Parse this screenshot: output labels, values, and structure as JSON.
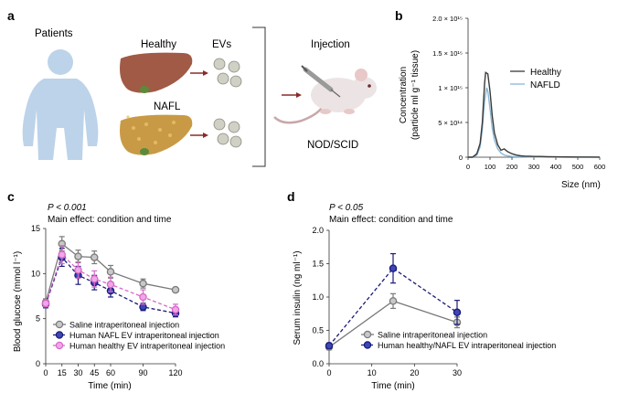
{
  "panel_a": {
    "label": "a",
    "patients": "Patients",
    "healthy": "Healthy",
    "nafl": "NAFL",
    "evs": "EVs",
    "injection": "Injection",
    "mouse": "NOD/SCID",
    "colors": {
      "skin": "#bcd3ea",
      "liver_healthy": "#a05a45",
      "liver_nafl": "#c99a45",
      "arrow": "#8a2a2a",
      "mouse": "#e8dede"
    }
  },
  "panel_b": {
    "label": "b",
    "ylabel_line1": "Concentration",
    "ylabel_line2": "(particle ml g⁻¹ tissue)",
    "xlabel": "Size (nm)",
    "legend_healthy": "Healthy",
    "legend_nafld": "NAFLD"
  },
  "panel_c": {
    "label": "c",
    "stat": "P < 0.001",
    "effect": "Main effect: condition and time",
    "ylabel": "Blood glucose (mmol l⁻¹)",
    "xlabel": "Time (min)",
    "legend": [
      "Saline intraperitoneal injection",
      "Human NAFL EV intraperitoneal injection",
      "Human healthy EV intraperitoneal injection"
    ]
  },
  "panel_d": {
    "label": "d",
    "stat": "P < 0.05",
    "effect": "Main effect: condition and time",
    "ylabel": "Serum insulin (ng ml⁻¹)",
    "xlabel": "Time (min)",
    "legend": [
      "Saline intraperitoneal injection",
      "Human healthy/NAFL EV intraperitoneal injection"
    ]
  },
  "chart_data": [
    {
      "type": "line",
      "id": "b",
      "xlabel": "Size (nm)",
      "ylabel": "Concentration (particle ml g⁻¹ tissue)",
      "xlim": [
        0,
        600
      ],
      "ylim": [
        0,
        2000000000000000.0
      ],
      "xticks": [
        0,
        100,
        200,
        300,
        400,
        500,
        600
      ],
      "yticks": [
        0,
        500000000000000.0,
        1000000000000000.0,
        1500000000000000.0,
        2000000000000000.0
      ],
      "ytick_labels": [
        "0",
        "5 × 10¹⁴",
        "1 × 10¹⁵",
        "1.5 × 10¹⁵",
        "2.0 × 10¹⁵"
      ],
      "legend_position": "right",
      "series": [
        {
          "name": "Healthy",
          "color": "#3a3a3a",
          "x": [
            0,
            20,
            40,
            55,
            65,
            75,
            80,
            90,
            100,
            110,
            120,
            135,
            150,
            165,
            180,
            200,
            220,
            240,
            260,
            280,
            300,
            330,
            360,
            400,
            450,
            500,
            550,
            600
          ],
          "values": [
            0,
            0,
            50000000000000.0,
            200000000000000.0,
            500000000000000.0,
            1050000000000000.0,
            1220000000000000.0,
            1200000000000000.0,
            950000000000000.0,
            600000000000000.0,
            350000000000000.0,
            180000000000000.0,
            100000000000000.0,
            120000000000000.0,
            80000000000000.0,
            50000000000000.0,
            30000000000000.0,
            20000000000000.0,
            15000000000000.0,
            15000000000000.0,
            10000000000000.0,
            10000000000000.0,
            8000000000000.0,
            5000000000000.0,
            4000000000000.0,
            3000000000000.0,
            2000000000000.0,
            1000000000000.0
          ]
        },
        {
          "name": "NAFLD",
          "color": "#8ab8d8",
          "x": [
            0,
            20,
            40,
            55,
            65,
            75,
            85,
            90,
            100,
            110,
            120,
            135,
            150,
            165,
            180,
            200,
            220,
            240,
            260,
            280,
            300,
            330,
            360,
            400,
            450,
            500,
            550,
            600
          ],
          "values": [
            0,
            0,
            30000000000000.0,
            150000000000000.0,
            400000000000000.0,
            800000000000000.0,
            1000000000000000.0,
            950000000000000.0,
            700000000000000.0,
            420000000000000.0,
            250000000000000.0,
            120000000000000.0,
            60000000000000.0,
            30000000000000.0,
            20000000000000.0,
            10000000000000.0,
            8000000000000.0,
            5000000000000.0,
            4000000000000.0,
            3000000000000.0,
            2000000000000.0,
            2000000000000.0,
            1000000000000.0,
            1000000000000.0,
            0,
            0,
            0,
            0
          ]
        }
      ]
    },
    {
      "type": "line",
      "id": "c",
      "xlabel": "Time (min)",
      "ylabel": "Blood glucose (mmol l⁻¹)",
      "xlim": [
        0,
        120
      ],
      "ylim": [
        0,
        15
      ],
      "xticks": [
        0,
        15,
        30,
        45,
        60,
        90,
        120
      ],
      "yticks": [
        0,
        5,
        10,
        15
      ],
      "x": [
        0,
        15,
        30,
        45,
        60,
        90,
        120
      ],
      "series": [
        {
          "name": "Saline intraperitoneal injection",
          "color": "#7a7a7a",
          "fill": "#c8c8c8",
          "dash": false,
          "values": [
            6.8,
            13.3,
            11.9,
            11.8,
            10.2,
            8.9,
            8.2
          ],
          "err": [
            0.4,
            0.8,
            0.7,
            0.7,
            0.7,
            0.5,
            0
          ]
        },
        {
          "name": "Human NAFL EV intraperitoneal injection",
          "color": "#1a1a7a",
          "fill": "#3d47b5",
          "dash": true,
          "values": [
            6.6,
            11.8,
            9.8,
            9.0,
            8.1,
            6.3,
            5.6
          ],
          "err": [
            0.4,
            1.0,
            1.0,
            0.8,
            0.7,
            0.4,
            0.4
          ]
        },
        {
          "name": "Human healthy EV intraperitoneal injection",
          "color": "#d868c8",
          "fill": "#f0a6e8",
          "dash": true,
          "values": [
            6.7,
            12.1,
            10.4,
            9.4,
            8.8,
            7.4,
            6.0
          ],
          "err": [
            0.4,
            1.0,
            0.9,
            0.9,
            0.8,
            0.8,
            0.6
          ]
        }
      ]
    },
    {
      "type": "line",
      "id": "d",
      "xlabel": "Time (min)",
      "ylabel": "Serum insulin (ng ml⁻¹)",
      "xlim": [
        0,
        30
      ],
      "ylim": [
        0,
        2.0
      ],
      "xticks": [
        0,
        10,
        20,
        30
      ],
      "yticks": [
        0,
        0.5,
        1.0,
        1.5,
        2.0
      ],
      "x": [
        0,
        15,
        30
      ],
      "series": [
        {
          "name": "Saline intraperitoneal injection",
          "color": "#7a7a7a",
          "fill": "#c8c8c8",
          "dash": false,
          "values": [
            0.25,
            0.94,
            0.62
          ],
          "err": [
            0.04,
            0.11,
            0.08
          ]
        },
        {
          "name": "Human healthy/NAFL EV intraperitoneal injection",
          "color": "#1a1a7a",
          "fill": "#3d47b5",
          "dash": true,
          "values": [
            0.27,
            1.43,
            0.77
          ],
          "err": [
            0.04,
            0.22,
            0.18
          ]
        }
      ]
    }
  ]
}
